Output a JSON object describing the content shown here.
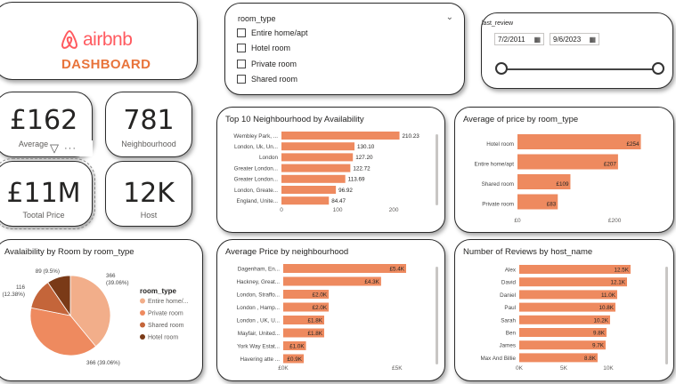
{
  "header": {
    "brand": "airbnb",
    "title": "DASHBOARD"
  },
  "room_slicer": {
    "title": "room_type",
    "options": [
      "Entire home/apt",
      "Hotel room",
      "Private room",
      "Shared room"
    ]
  },
  "date_slicer": {
    "title": "last_review",
    "start": "7/2/2011",
    "end": "9/6/2023"
  },
  "kpis": {
    "avg_price": {
      "value": "£162",
      "label": "Average Price"
    },
    "neighbourhood": {
      "value": "781",
      "label": "Neighbourhood"
    },
    "total_price": {
      "value": "£11M",
      "label": "Tootal Price"
    },
    "host": {
      "value": "12K",
      "label": "Host"
    }
  },
  "colors": {
    "accent": "#ee8a5f",
    "dark": "#7a3a17",
    "mid": "#c4653a",
    "light": "#f2ae8a",
    "brand": "#ff5a5f"
  },
  "chart_data": [
    {
      "id": "top10",
      "type": "bar",
      "title": "Top 10 Neighbourhood by Availability",
      "categories": [
        "Wembley Park, ...",
        "London, Uk, Un...",
        "London",
        "Greater London...",
        "Greater London...",
        "London, Greate...",
        "England, Unite..."
      ],
      "values": [
        210.23,
        130.1,
        127.2,
        122.72,
        113.69,
        96.92,
        84.47
      ],
      "labels": [
        "210.23",
        "130.10",
        "127.20",
        "122.72",
        "113.69",
        "96.92",
        "84.47"
      ],
      "xticks": [
        "0",
        "100",
        "200"
      ],
      "xlim": [
        0,
        230
      ]
    },
    {
      "id": "avg_price_room",
      "type": "bar",
      "title": "Average of price by room_type",
      "categories": [
        "Hotel room",
        "Entire home/apt",
        "Shared room",
        "Private room"
      ],
      "values": [
        254,
        207,
        109,
        83
      ],
      "labels": [
        "£254",
        "£207",
        "£109",
        "£83"
      ],
      "xticks": [
        "£0",
        "£200"
      ],
      "xlim": [
        0,
        275
      ]
    },
    {
      "id": "pie_room",
      "type": "pie",
      "title": "Avalaibility by Room by room_type",
      "legend_title": "room_type",
      "categories": [
        "Entire home/...",
        "Private room",
        "Shared room",
        "Hotel room"
      ],
      "values": [
        366,
        366,
        116,
        89
      ],
      "labels": [
        "366 (39.06%)",
        "366 (39.06%)",
        "116 (12.38%)",
        "89 (9.5%)"
      ]
    },
    {
      "id": "avg_price_neigh",
      "type": "bar",
      "title": "Average Price by neighbourhood",
      "categories": [
        "Dagenham, En...",
        "Hackney, Great...",
        "London, Straffo...",
        "London , Hamp...",
        "London , UK, U...",
        "Mayfair, United...",
        "York Way Estat...",
        "Havering atte ..."
      ],
      "values": [
        5400,
        4300,
        2000,
        2000,
        1800,
        1800,
        1000,
        900
      ],
      "labels": [
        "£5.4K",
        "£4.3K",
        "£2.0K",
        "£2.0K",
        "£1.8K",
        "£1.8K",
        "£1.0K",
        "£0.9K"
      ],
      "xticks": [
        "£0K",
        "£5K"
      ],
      "xlim": [
        0,
        5400
      ]
    },
    {
      "id": "reviews_host",
      "type": "bar",
      "title": "Number of Reviews by host_name",
      "categories": [
        "Alex",
        "David",
        "Daniel",
        "Paul",
        "Sarah",
        "Ben",
        "James",
        "Max And Billie"
      ],
      "values": [
        12500,
        12100,
        11000,
        10800,
        10200,
        9800,
        9700,
        8800
      ],
      "labels": [
        "12.5K",
        "12.1K",
        "11.0K",
        "10.8K",
        "10.2K",
        "9.8K",
        "9.7K",
        "8.8K"
      ],
      "xticks": [
        "0K",
        "5K",
        "10K"
      ],
      "xlim": [
        0,
        14000
      ]
    }
  ]
}
